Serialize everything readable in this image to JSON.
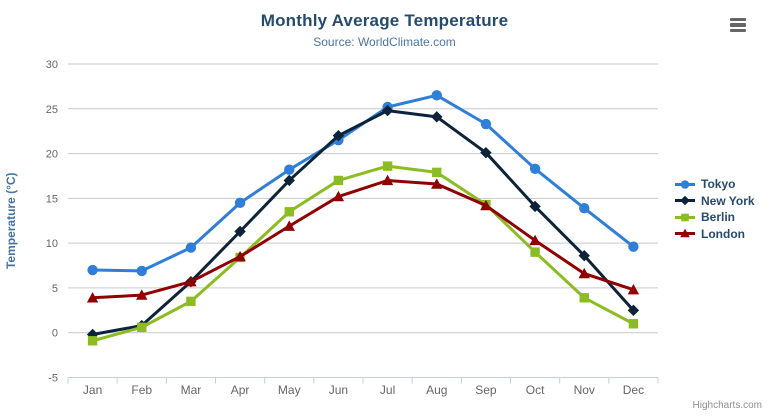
{
  "header": {
    "title": "Monthly Average Temperature",
    "subtitle": "Source: WorldClimate.com"
  },
  "icons": {
    "context_menu": "hamburger-icon"
  },
  "credits": {
    "label": "Highcharts.com"
  },
  "chart_data": {
    "type": "line",
    "title": "Monthly Average Temperature",
    "subtitle": "Source: WorldClimate.com",
    "categories": [
      "Jan",
      "Feb",
      "Mar",
      "Apr",
      "May",
      "Jun",
      "Jul",
      "Aug",
      "Sep",
      "Oct",
      "Nov",
      "Dec"
    ],
    "series": [
      {
        "name": "Tokyo",
        "color": "#2f7ed8",
        "marker": "circle",
        "values": [
          7.0,
          6.9,
          9.5,
          14.5,
          18.2,
          21.5,
          25.2,
          26.5,
          23.3,
          18.3,
          13.9,
          9.6
        ]
      },
      {
        "name": "New York",
        "color": "#0d233a",
        "marker": "diamond",
        "values": [
          -0.2,
          0.8,
          5.7,
          11.3,
          17.0,
          22.0,
          24.8,
          24.1,
          20.1,
          14.1,
          8.6,
          2.5
        ]
      },
      {
        "name": "Berlin",
        "color": "#8bbc21",
        "marker": "square",
        "values": [
          -0.9,
          0.6,
          3.5,
          8.4,
          13.5,
          17.0,
          18.6,
          17.9,
          14.3,
          9.0,
          3.9,
          1.0
        ]
      },
      {
        "name": "London",
        "color": "#910000",
        "marker": "triangle",
        "values": [
          3.9,
          4.2,
          5.7,
          8.5,
          11.9,
          15.2,
          17.0,
          16.6,
          14.2,
          10.3,
          6.6,
          4.8
        ]
      }
    ],
    "xlabel": "",
    "ylabel": "Temperature (°C)",
    "ylim": [
      -5,
      30
    ],
    "yticks": [
      -5,
      0,
      5,
      10,
      15,
      20,
      25,
      30
    ],
    "grid": true,
    "legend_position": "right"
  },
  "theme": {
    "title_color": "#274b6d",
    "subtitle_color": "#4d759e",
    "axis_label_color": "#666666",
    "axis_title_color": "#4572a7",
    "grid_color": "#c9c9c9",
    "axis_line_color": "#c0d0e0",
    "legend_text_color": "#274b6d",
    "credits_color": "#909090",
    "burger_color": "#666666"
  }
}
